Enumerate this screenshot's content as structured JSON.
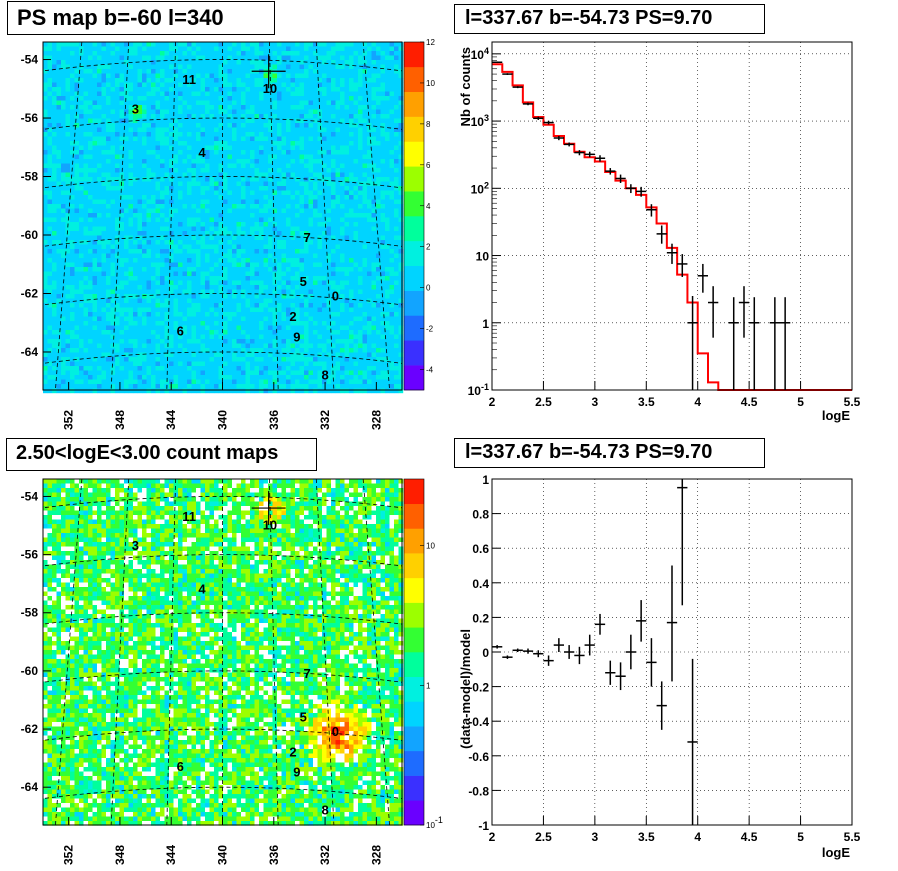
{
  "chart_data": [
    {
      "type": "heatmap",
      "title": "PS map b=-60 l=340",
      "xlim": [
        354,
        326
      ],
      "ylim": [
        -65.3,
        -53.4
      ],
      "x_ticks": [
        "352",
        "348",
        "344",
        "340",
        "336",
        "332",
        "328"
      ],
      "y_ticks": [
        "-54",
        "-56",
        "-58",
        "-60",
        "-62",
        "-64"
      ],
      "colorbar": {
        "scale": "linear",
        "range": [
          -5,
          12
        ],
        "ticks": [
          "12",
          "10",
          "8",
          "6",
          "4",
          "2",
          "0",
          "-2",
          "-4"
        ]
      },
      "sources": [
        {
          "label": "0",
          "l": 331.2,
          "b": -62.1
        },
        {
          "label": "2",
          "l": 334.5,
          "b": -62.8
        },
        {
          "label": "3",
          "l": 346.8,
          "b": -55.7
        },
        {
          "label": "4",
          "l": 341.6,
          "b": -57.2
        },
        {
          "label": "5",
          "l": 333.7,
          "b": -61.6
        },
        {
          "label": "6",
          "l": 343.3,
          "b": -63.3
        },
        {
          "label": "7",
          "l": 333.4,
          "b": -60.1
        },
        {
          "label": "8",
          "l": 332.0,
          "b": -64.8
        },
        {
          "label": "9",
          "l": 334.2,
          "b": -63.5
        },
        {
          "label": "10",
          "l": 336.3,
          "b": -55.0
        },
        {
          "label": "11",
          "l": 342.6,
          "b": -54.7
        }
      ],
      "marker": {
        "l": 336.4,
        "b": -54.4
      }
    },
    {
      "type": "line",
      "title": "l=337.67 b=-54.73 PS=9.70",
      "xlabel": "logE",
      "ylabel": "Nb of counts",
      "xlim": [
        2,
        5.5
      ],
      "ylim": [
        0.1,
        15000
      ],
      "yscale": "log",
      "x_ticks": [
        "2",
        "2.5",
        "3",
        "3.5",
        "4",
        "4.5",
        "5",
        "5.5"
      ],
      "y_ticks": [
        {
          "label": "10",
          "exp": "4",
          "value": 10000
        },
        {
          "label": "10",
          "exp": "3",
          "value": 1000
        },
        {
          "label": "10",
          "exp": "2",
          "value": 100
        },
        {
          "label": "10",
          "exp": "",
          "value": 10
        },
        {
          "label": "1",
          "exp": "",
          "value": 1
        },
        {
          "label": "10",
          "exp": "-1",
          "value": 0.1
        }
      ],
      "grid": true,
      "model_color": "#ff0000",
      "model_edges": [
        2.0,
        2.1,
        2.2,
        2.3,
        2.4,
        2.5,
        2.6,
        2.7,
        2.8,
        2.9,
        3.0,
        3.1,
        3.2,
        3.3,
        3.4,
        3.5,
        3.6,
        3.7,
        3.8,
        3.9,
        4.0,
        4.1,
        4.2,
        4.3,
        4.4,
        4.5,
        4.6,
        4.7,
        4.8,
        4.9,
        5.0,
        5.5
      ],
      "model_values": [
        7000,
        5400,
        3400,
        1900,
        1150,
        880,
        600,
        460,
        350,
        290,
        250,
        175,
        130,
        100,
        80,
        52,
        30,
        13,
        5.2,
        2,
        0.35,
        0.13,
        0.1,
        0.1,
        0.1,
        0.1,
        0.1,
        0.1,
        0.1,
        0.1,
        0.1
      ],
      "data_points": [
        {
          "x": 2.05,
          "y": 7500,
          "lo": 7300,
          "hi": 7700
        },
        {
          "x": 2.15,
          "y": 5000,
          "lo": 4850,
          "hi": 5150
        },
        {
          "x": 2.25,
          "y": 3200,
          "lo": 3090,
          "hi": 3310
        },
        {
          "x": 2.35,
          "y": 1800,
          "lo": 1720,
          "hi": 1880
        },
        {
          "x": 2.45,
          "y": 1100,
          "lo": 1040,
          "hi": 1160
        },
        {
          "x": 2.55,
          "y": 950,
          "lo": 890,
          "hi": 1010
        },
        {
          "x": 2.65,
          "y": 560,
          "lo": 520,
          "hi": 600
        },
        {
          "x": 2.75,
          "y": 450,
          "lo": 420,
          "hi": 480
        },
        {
          "x": 2.85,
          "y": 340,
          "lo": 310,
          "hi": 370
        },
        {
          "x": 2.95,
          "y": 320,
          "lo": 290,
          "hi": 350
        },
        {
          "x": 3.05,
          "y": 280,
          "lo": 250,
          "hi": 310
        },
        {
          "x": 3.15,
          "y": 180,
          "lo": 160,
          "hi": 200
        },
        {
          "x": 3.25,
          "y": 140,
          "lo": 120,
          "hi": 160
        },
        {
          "x": 3.35,
          "y": 100,
          "lo": 85,
          "hi": 115
        },
        {
          "x": 3.45,
          "y": 90,
          "lo": 75,
          "hi": 105
        },
        {
          "x": 3.55,
          "y": 48,
          "lo": 38,
          "hi": 58
        },
        {
          "x": 3.65,
          "y": 21,
          "lo": 15,
          "hi": 28
        },
        {
          "x": 3.75,
          "y": 11,
          "lo": 7.5,
          "hi": 15
        },
        {
          "x": 3.85,
          "y": 7.5,
          "lo": 4.8,
          "hi": 10.5
        },
        {
          "x": 3.95,
          "y": 1,
          "lo": 0.1,
          "hi": 2.5
        },
        {
          "x": 4.05,
          "y": 5,
          "lo": 2.8,
          "hi": 7.5
        },
        {
          "x": 4.15,
          "y": 2,
          "lo": 0.6,
          "hi": 3.5
        },
        {
          "x": 4.35,
          "y": 1,
          "lo": 0.1,
          "hi": 2.4
        },
        {
          "x": 4.45,
          "y": 2,
          "lo": 0.6,
          "hi": 3.5
        },
        {
          "x": 4.55,
          "y": 1,
          "lo": 0.1,
          "hi": 2.4
        },
        {
          "x": 4.75,
          "y": 1,
          "lo": 0.1,
          "hi": 2.4
        },
        {
          "x": 4.85,
          "y": 1,
          "lo": 0.1,
          "hi": 2.4
        }
      ]
    },
    {
      "type": "heatmap",
      "title": "2.50<logE<3.00 count maps",
      "xlim": [
        354,
        326
      ],
      "ylim": [
        -65.3,
        -53.4
      ],
      "x_ticks": [
        "352",
        "348",
        "344",
        "340",
        "336",
        "332",
        "328"
      ],
      "y_ticks": [
        "-54",
        "-56",
        "-58",
        "-60",
        "-62",
        "-64"
      ],
      "colorbar": {
        "scale": "log",
        "range": [
          0.1,
          30
        ],
        "ticks": [
          {
            "label": "10",
            "exp": "",
            "value": 10
          },
          {
            "label": "1",
            "exp": "",
            "value": 1
          },
          {
            "label": "10",
            "exp": "-1",
            "value": 0.1
          }
        ]
      },
      "sources": [
        {
          "label": "0",
          "l": 331.2,
          "b": -62.1
        },
        {
          "label": "2",
          "l": 334.5,
          "b": -62.8
        },
        {
          "label": "3",
          "l": 346.8,
          "b": -55.7
        },
        {
          "label": "4",
          "l": 341.6,
          "b": -57.2
        },
        {
          "label": "5",
          "l": 333.7,
          "b": -61.6
        },
        {
          "label": "6",
          "l": 343.3,
          "b": -63.3
        },
        {
          "label": "7",
          "l": 333.4,
          "b": -60.1
        },
        {
          "label": "8",
          "l": 332.0,
          "b": -64.8
        },
        {
          "label": "9",
          "l": 334.2,
          "b": -63.5
        },
        {
          "label": "10",
          "l": 336.3,
          "b": -55.0
        },
        {
          "label": "11",
          "l": 342.6,
          "b": -54.7
        }
      ],
      "marker": {
        "l": 336.4,
        "b": -54.4
      }
    },
    {
      "type": "scatter",
      "title": "l=337.67 b=-54.73 PS=9.70",
      "xlabel": "logE",
      "ylabel": "(data-model)/model",
      "xlim": [
        2,
        5.5
      ],
      "ylim": [
        -1,
        1
      ],
      "x_ticks": [
        "2",
        "2.5",
        "3",
        "3.5",
        "4",
        "4.5",
        "5",
        "5.5"
      ],
      "y_ticks": [
        "1",
        "0.8",
        "0.6",
        "0.4",
        "0.2",
        "0",
        "-0.2",
        "-0.4",
        "-0.6",
        "-0.8",
        "-1"
      ],
      "grid": true,
      "data_points": [
        {
          "x": 2.05,
          "y": 0.03,
          "lo": 0.02,
          "hi": 0.04
        },
        {
          "x": 2.15,
          "y": -0.03,
          "lo": -0.04,
          "hi": -0.02
        },
        {
          "x": 2.25,
          "y": 0.01,
          "lo": 0.0,
          "hi": 0.02
        },
        {
          "x": 2.35,
          "y": 0.005,
          "lo": -0.01,
          "hi": 0.02
        },
        {
          "x": 2.45,
          "y": -0.01,
          "lo": -0.03,
          "hi": 0.01
        },
        {
          "x": 2.55,
          "y": -0.05,
          "lo": -0.08,
          "hi": -0.02
        },
        {
          "x": 2.65,
          "y": 0.04,
          "lo": 0.0,
          "hi": 0.08
        },
        {
          "x": 2.75,
          "y": 0.0,
          "lo": -0.04,
          "hi": 0.04
        },
        {
          "x": 2.85,
          "y": -0.02,
          "lo": -0.07,
          "hi": 0.03
        },
        {
          "x": 2.95,
          "y": 0.04,
          "lo": -0.02,
          "hi": 0.1
        },
        {
          "x": 3.05,
          "y": 0.16,
          "lo": 0.1,
          "hi": 0.22
        },
        {
          "x": 3.15,
          "y": -0.12,
          "lo": -0.19,
          "hi": -0.05
        },
        {
          "x": 3.25,
          "y": -0.14,
          "lo": -0.22,
          "hi": -0.06
        },
        {
          "x": 3.35,
          "y": 0.0,
          "lo": -0.1,
          "hi": 0.1
        },
        {
          "x": 3.45,
          "y": 0.18,
          "lo": 0.06,
          "hi": 0.3
        },
        {
          "x": 3.55,
          "y": -0.06,
          "lo": -0.2,
          "hi": 0.08
        },
        {
          "x": 3.65,
          "y": -0.31,
          "lo": -0.45,
          "hi": -0.17
        },
        {
          "x": 3.75,
          "y": 0.17,
          "lo": -0.17,
          "hi": 0.5
        },
        {
          "x": 3.85,
          "y": 0.95,
          "lo": 0.27,
          "hi": 1.0
        },
        {
          "x": 3.95,
          "y": -0.52,
          "lo": -1.0,
          "hi": -0.04
        }
      ]
    }
  ]
}
